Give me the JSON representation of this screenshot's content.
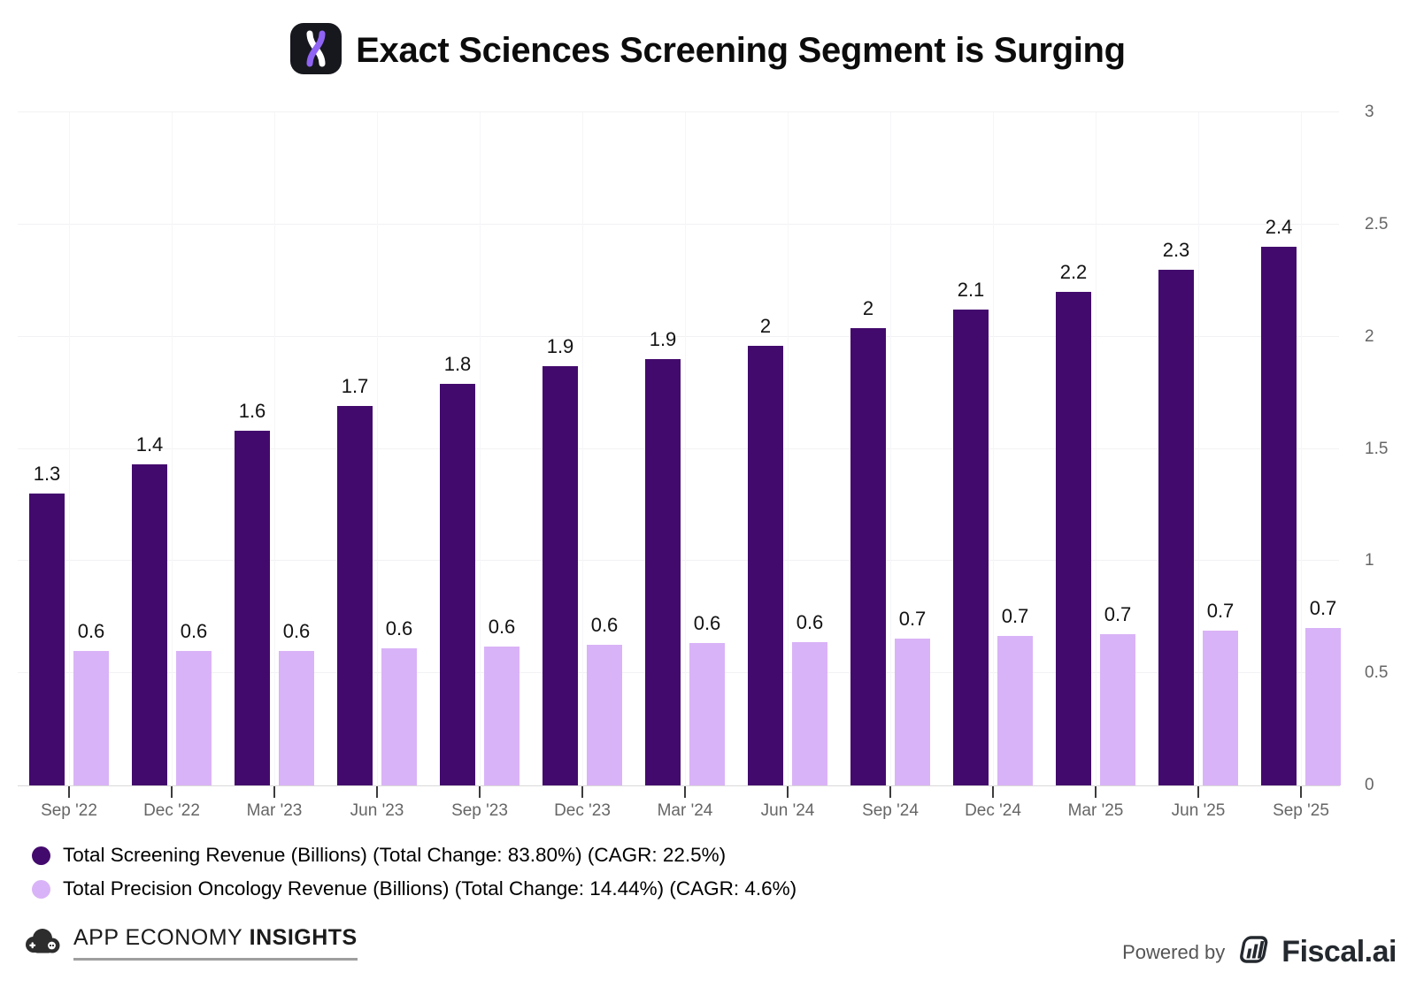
{
  "title": {
    "text": "Exact Sciences Screening Segment is Surging"
  },
  "chart_data": {
    "type": "bar",
    "title": "Exact Sciences Screening Segment is Surging",
    "categories": [
      "Sep '22",
      "Dec '22",
      "Mar '23",
      "Jun '23",
      "Sep '23",
      "Dec '23",
      "Mar '24",
      "Jun '24",
      "Sep '24",
      "Dec '24",
      "Mar '25",
      "Jun '25",
      "Sep '25"
    ],
    "series": [
      {
        "name": "Total Screening Revenue (Billions) (Total Change: 83.80%) (CAGR: 22.5%)",
        "color": "#430A6D",
        "values": [
          1.3,
          1.4,
          1.6,
          1.7,
          1.8,
          1.9,
          1.9,
          2,
          2,
          2.1,
          2.2,
          2.3,
          2.4
        ],
        "labels": [
          "1.3",
          "1.4",
          "1.6",
          "1.7",
          "1.8",
          "1.9",
          "1.9",
          "2",
          "2",
          "2.1",
          "2.2",
          "2.3",
          "2.4"
        ],
        "values_precise": [
          1.3,
          1.43,
          1.58,
          1.69,
          1.79,
          1.87,
          1.9,
          1.96,
          2.04,
          2.12,
          2.2,
          2.3,
          2.4
        ]
      },
      {
        "name": "Total Precision Oncology Revenue (Billions) (Total Change: 14.44%) (CAGR: 4.6%)",
        "color": "#D9B3F7",
        "values": [
          0.6,
          0.6,
          0.6,
          0.6,
          0.6,
          0.6,
          0.6,
          0.6,
          0.7,
          0.7,
          0.7,
          0.7,
          0.7
        ],
        "labels": [
          "0.6",
          "0.6",
          "0.6",
          "0.6",
          "0.6",
          "0.6",
          "0.6",
          "0.6",
          "0.7",
          "0.7",
          "0.7",
          "0.7",
          "0.7"
        ],
        "values_precise": [
          0.6,
          0.6,
          0.6,
          0.61,
          0.62,
          0.625,
          0.635,
          0.64,
          0.655,
          0.665,
          0.675,
          0.69,
          0.7
        ]
      }
    ],
    "y_axis": {
      "side": "right",
      "min": 0,
      "max": 3,
      "tick_labels": [
        "0",
        "0.5",
        "1",
        "1.5",
        "2",
        "2.5",
        "3"
      ]
    },
    "grid": true,
    "legend_position": "bottom-left"
  },
  "footer": {
    "left_brand": {
      "text_regular": "APP ECONOMY",
      "text_bold": "INSIGHTS"
    },
    "right_brand": {
      "powered_by": "Powered by",
      "brand": "Fiscal.ai"
    }
  },
  "colors": {
    "screening_bar": "#430A6D",
    "oncology_bar": "#D9B3F7",
    "axis_label": "#666666",
    "grid_line": "#f2f2f4",
    "icon_background": "#17171e",
    "icon_strand_purple": "#8f63f3"
  }
}
